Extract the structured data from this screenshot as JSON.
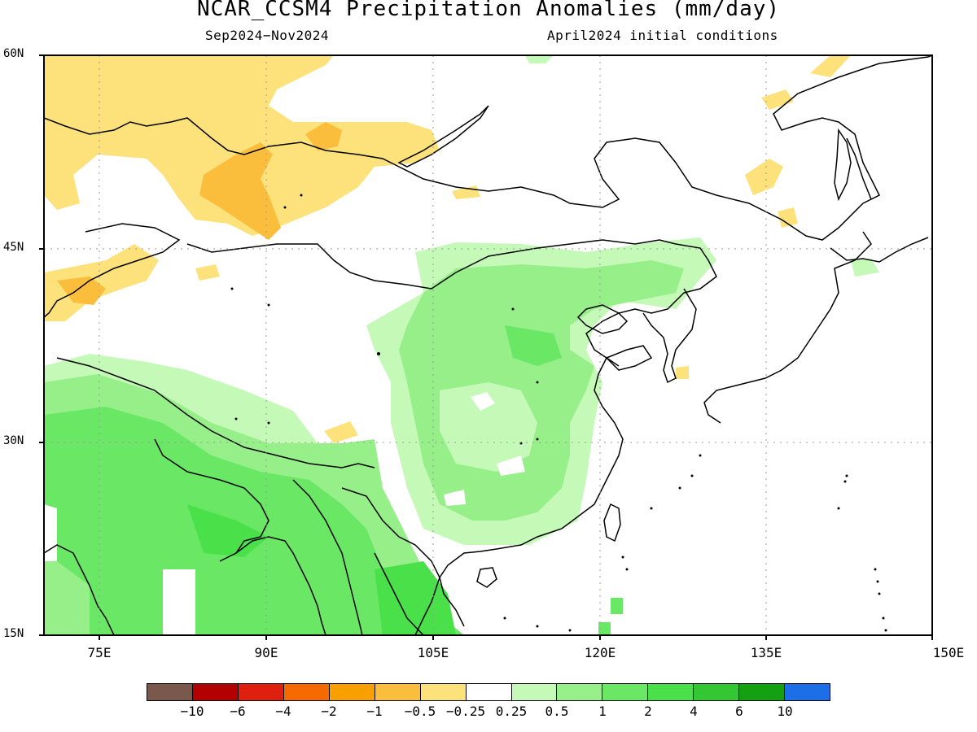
{
  "title": "NCAR_CCSM4 Precipitation Anomalies (mm/day)",
  "subtitle_left": "Sep2024−Nov2024",
  "subtitle_right": "April2024 initial conditions",
  "lat_labels": [
    "60N",
    "45N",
    "30N",
    "15N"
  ],
  "lon_labels": [
    "75E",
    "90E",
    "105E",
    "120E",
    "135E",
    "150E"
  ],
  "colorbar": {
    "colors": [
      "#7b584c",
      "#b30000",
      "#e0200f",
      "#f46a00",
      "#f7a000",
      "#fbbd3c",
      "#fde17a",
      "#ffffff",
      "#c5f9b8",
      "#97ef8a",
      "#6ae765",
      "#4ae04a",
      "#33c733",
      "#13a013",
      "#1c6fe6"
    ],
    "labels": [
      "−10",
      "−6",
      "−4",
      "−2",
      "−1",
      "−0.5",
      "−0.25",
      "0.25",
      "0.5",
      "1",
      "2",
      "4",
      "6",
      "10"
    ]
  }
}
